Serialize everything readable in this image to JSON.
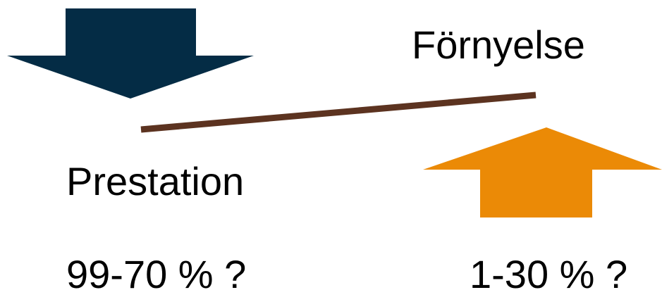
{
  "labels": {
    "renewal": "Förnyelse",
    "performance": "Prestation",
    "performance_share": "99-70 % ?",
    "renewal_share": "1-30 % ?"
  },
  "colors": {
    "down_arrow": "#042c45",
    "up_arrow": "#eb8a06",
    "balance_line": "#5c3320",
    "text": "#000000"
  },
  "icons": {
    "down_arrow": "arrow-down-icon",
    "up_arrow": "arrow-up-icon"
  }
}
